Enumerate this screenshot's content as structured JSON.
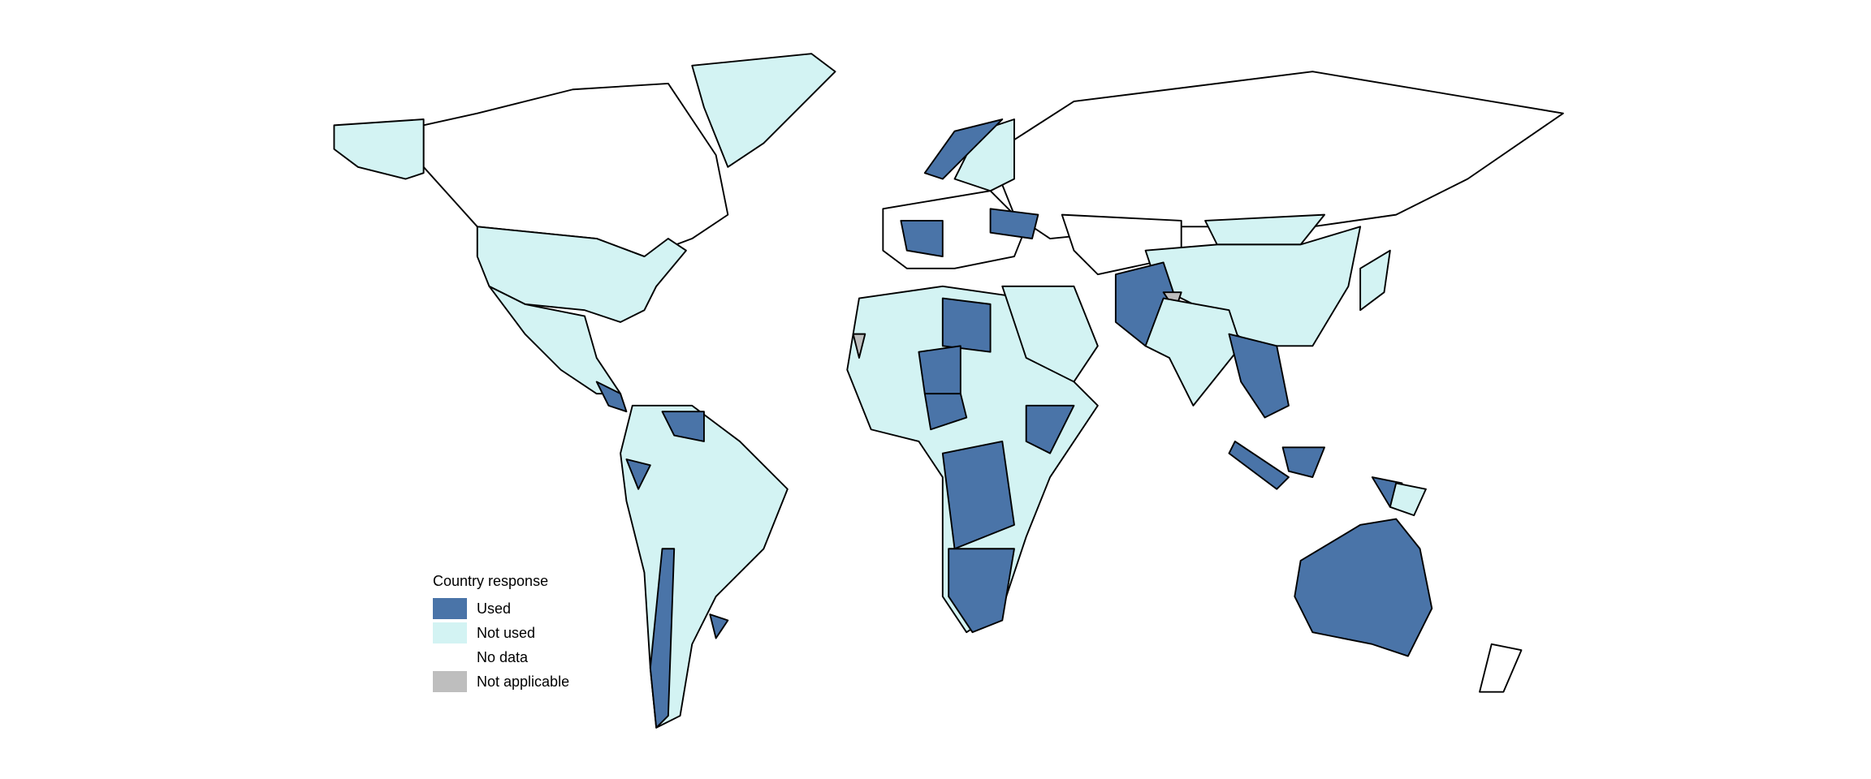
{
  "legend": {
    "title": "Country response",
    "items": [
      {
        "key": "used",
        "label": "Used",
        "color": "#4a74a8"
      },
      {
        "key": "not_used",
        "label": "Not used",
        "color": "#d3f3f3"
      },
      {
        "key": "no_data",
        "label": "No data",
        "color": "#ffffff"
      },
      {
        "key": "not_applicable",
        "label": "Not applicable",
        "color": "#bebebe"
      }
    ]
  }
}
